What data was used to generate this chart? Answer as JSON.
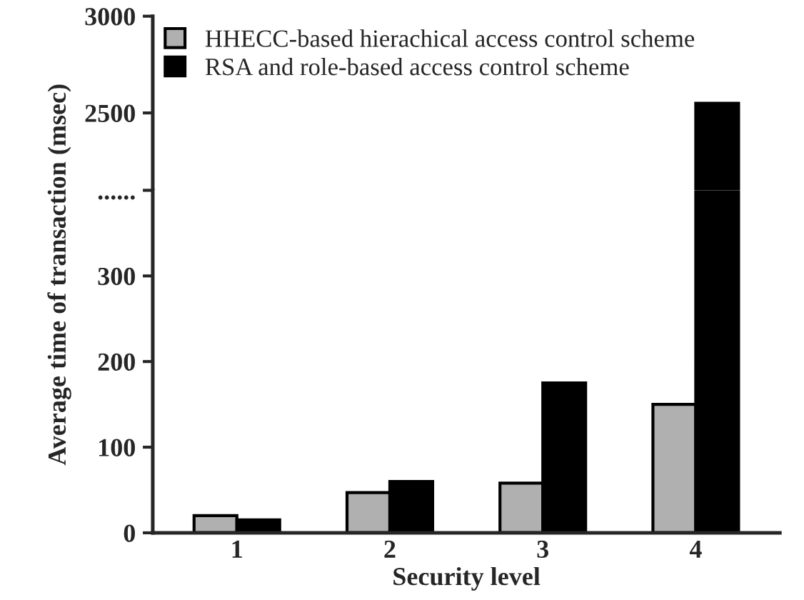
{
  "chart_data": [
    {
      "type": "bar",
      "categories": [
        "1",
        "2",
        "3",
        "4"
      ],
      "series": [
        {
          "name": "HHECC-based hierachical access control scheme",
          "color": "#b0b0b0",
          "values": [
            null,
            null,
            null,
            null
          ]
        },
        {
          "name": "RSA and role-based access control scheme",
          "color": "#000000",
          "values": [
            null,
            null,
            null,
            2550
          ]
        }
      ],
      "ylim": [
        2100,
        3000
      ],
      "yticks": [
        2500,
        3000
      ],
      "tick_labels": "y",
      "grid": false,
      "legend": "top left"
    },
    {
      "type": "bar",
      "xlabel": "Security level",
      "ylabel": "Average time of transaction (msec)",
      "categories": [
        "1",
        "2",
        "3",
        "4"
      ],
      "series": [
        {
          "color": "#b0b0b0",
          "values": [
            20,
            47,
            58,
            150
          ]
        },
        {
          "color": "#000000",
          "values": [
            15,
            60,
            175,
            400
          ]
        }
      ],
      "ylim": [
        0,
        400
      ],
      "yticks": [
        0,
        100,
        200,
        300,
        {
          "value": 400,
          "label": "......"
        }
      ],
      "grid": false
    }
  ]
}
